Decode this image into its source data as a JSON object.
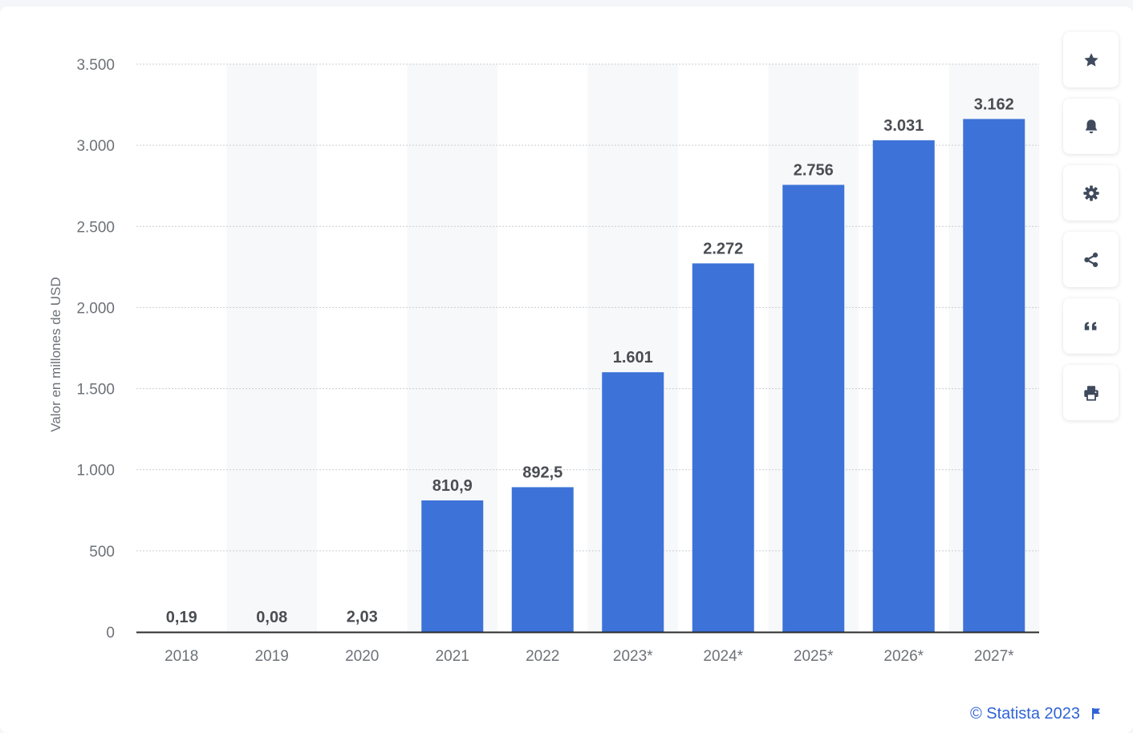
{
  "colors": {
    "bar": "#3d73d8",
    "grid": "#c9ccd1",
    "band": "#f7f8fa",
    "axis": "#2b2b2b",
    "tick_text": "#6d7278",
    "label_text": "#4a4d52",
    "accent": "#2f63d6",
    "icon": "#3f4a5c"
  },
  "chart_data": {
    "type": "bar",
    "ylabel": "Valor en millones de USD",
    "ylim": [
      0,
      3500
    ],
    "yticks": [
      0,
      500,
      1000,
      1500,
      2000,
      2500,
      3000,
      3500
    ],
    "ytick_labels": [
      "0",
      "500",
      "1.000",
      "1.500",
      "2.000",
      "2.500",
      "3.000",
      "3.500"
    ],
    "categories": [
      "2018",
      "2019",
      "2020",
      "2021",
      "2022",
      "2023*",
      "2024*",
      "2025*",
      "2026*",
      "2027*"
    ],
    "values": [
      0.19,
      0.08,
      2.03,
      810.9,
      892.5,
      1601,
      2272,
      2756,
      3031,
      3162
    ],
    "value_labels": [
      "0,19",
      "0,08",
      "2,03",
      "810,9",
      "892,5",
      "1.601",
      "2.272",
      "2.756",
      "3.031",
      "3.162"
    ],
    "grid": true,
    "legend": "none"
  },
  "sidebar": {
    "buttons": [
      {
        "icon": "star-icon",
        "name": "favorite-button"
      },
      {
        "icon": "bell-icon",
        "name": "notification-button"
      },
      {
        "icon": "gear-icon",
        "name": "settings-button"
      },
      {
        "icon": "share-icon",
        "name": "share-button"
      },
      {
        "icon": "quote-icon",
        "name": "cite-button"
      },
      {
        "icon": "print-icon",
        "name": "print-button"
      }
    ]
  },
  "credit": {
    "text": "© Statista 2023",
    "icon": "flag-icon"
  }
}
